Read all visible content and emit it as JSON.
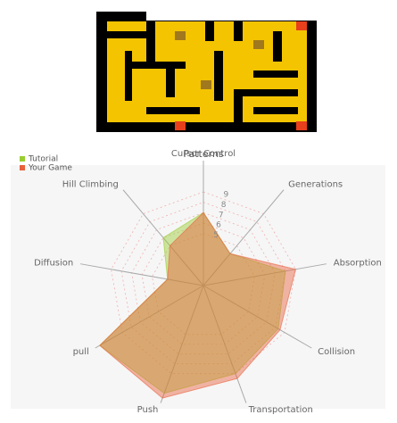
{
  "chart_data": {
    "type": "radar",
    "title": "Patterns",
    "categories": [
      "Cursor Control",
      "Generations",
      "Absorption",
      "Collision",
      "Transportation",
      "Push",
      "pull",
      "Diffusion",
      "Hill Climbing"
    ],
    "series": [
      {
        "name": "Tutorial",
        "color": "#9acd32",
        "values": [
          7,
          4,
          8,
          8.3,
          9,
          11,
          11.5,
          3.5,
          6
        ]
      },
      {
        "name": "Your Game",
        "color": "#e8603c",
        "values": [
          7,
          4,
          9,
          8.5,
          9.5,
          11.5,
          11.5,
          3.5,
          5
        ]
      }
    ],
    "rlim": [
      0,
      12
    ],
    "rticks": [
      5,
      6,
      7,
      8,
      9
    ],
    "grid": true,
    "legend": "top-left"
  }
}
